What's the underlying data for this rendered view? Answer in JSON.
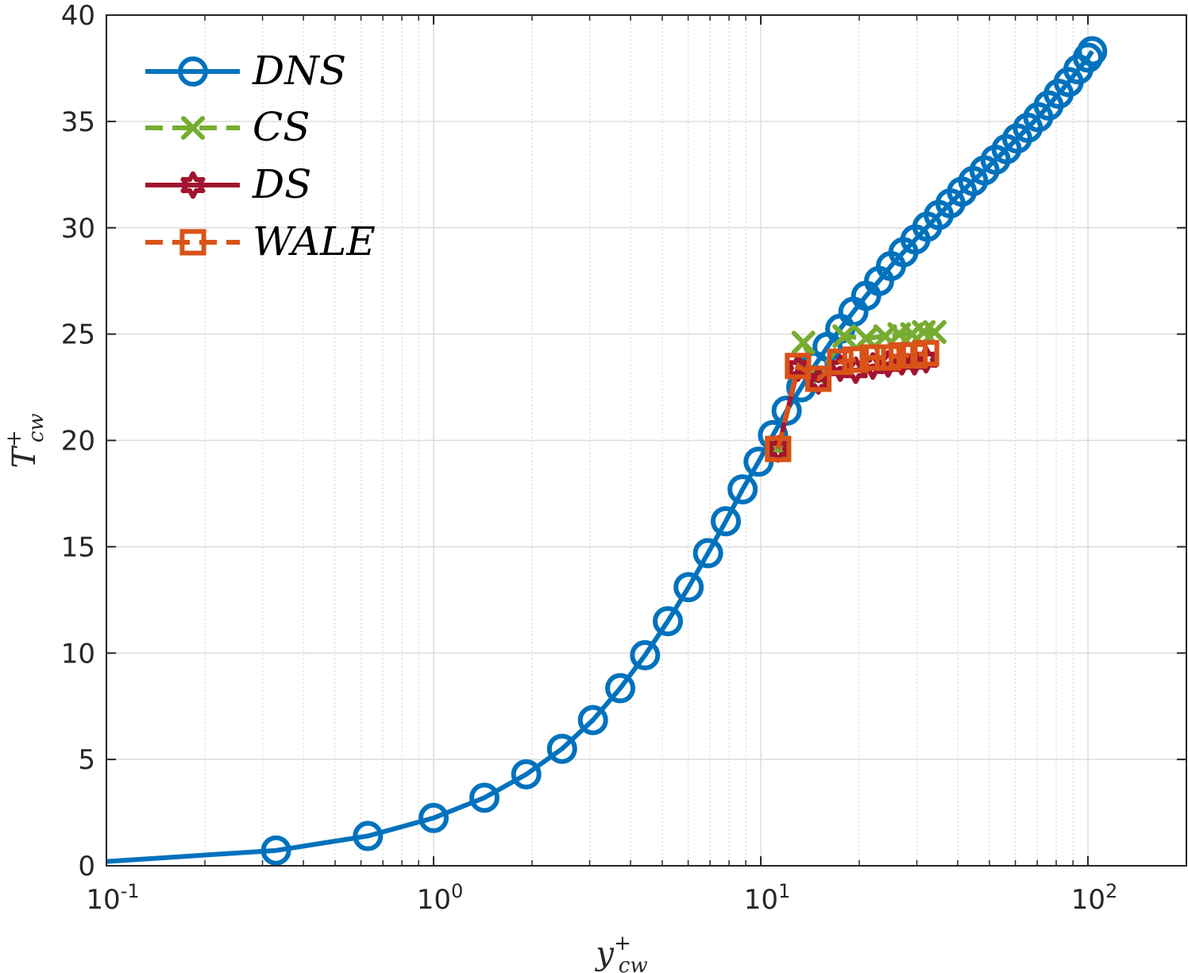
{
  "chart_data": {
    "type": "line",
    "title": "",
    "xscale": "log",
    "xlabel": "y+ cw",
    "xlabel_main": "y",
    "xlabel_sup": "+",
    "xlabel_sub": "cw",
    "ylabel": "T+ cw",
    "ylabel_main": "T",
    "ylabel_sup": "+",
    "ylabel_sub": "cw",
    "xlim": [
      0.1,
      200
    ],
    "ylim": [
      0,
      40
    ],
    "grid": true,
    "legend_position": "top-left",
    "x_ticks": [
      {
        "value": 0.1,
        "base": "10",
        "exp": "-1"
      },
      {
        "value": 1,
        "base": "10",
        "exp": "0"
      },
      {
        "value": 10,
        "base": "10",
        "exp": "1"
      },
      {
        "value": 100,
        "base": "10",
        "exp": "2"
      }
    ],
    "y_ticks": [
      0,
      5,
      10,
      15,
      20,
      25,
      30,
      35,
      40
    ],
    "series": [
      {
        "name": "DNS",
        "color": "#0072BD",
        "line_style": "solid",
        "marker": "circle",
        "x": [
          0.1,
          0.33,
          0.63,
          1.0,
          1.43,
          1.92,
          2.47,
          3.07,
          3.72,
          4.43,
          5.2,
          6.02,
          6.9,
          7.82,
          8.8,
          9.85,
          10.9,
          12.0,
          13.3,
          14.6,
          16.0,
          17.5,
          19.2,
          21.0,
          23.0,
          25.0,
          27.3,
          29.7,
          32.3,
          35.0,
          38.0,
          41.2,
          44.6,
          48.3,
          52.2,
          56.4,
          60.8,
          65.5,
          70.5,
          75.8,
          81.4,
          87.3,
          93.5,
          100.0,
          103.0
        ],
        "y": [
          0.2,
          0.72,
          1.4,
          2.25,
          3.2,
          4.3,
          5.5,
          6.85,
          8.35,
          9.9,
          11.5,
          13.1,
          14.7,
          16.2,
          17.7,
          19.0,
          20.25,
          21.4,
          22.5,
          23.5,
          24.4,
          25.25,
          26.05,
          26.8,
          27.5,
          28.2,
          28.85,
          29.45,
          30.05,
          30.6,
          31.15,
          31.7,
          32.2,
          32.7,
          33.2,
          33.7,
          34.2,
          34.7,
          35.2,
          35.75,
          36.3,
          36.85,
          37.45,
          38.0,
          38.3
        ]
      },
      {
        "name": "CS",
        "color": "#77AC30",
        "line_style": "dashed",
        "marker": "x",
        "x": [
          11.3,
          13.5,
          15.0,
          18.0,
          21.0,
          24.0,
          26.5,
          29.0,
          31.5,
          34.0
        ],
        "y": [
          19.6,
          24.6,
          23.0,
          24.9,
          24.8,
          24.9,
          25.0,
          25.0,
          25.1,
          25.1
        ]
      },
      {
        "name": "DS",
        "color": "#A2142F",
        "line_style": "solid",
        "marker": "hexagram",
        "x": [
          11.3,
          13.0,
          15.0,
          17.5,
          19.5,
          22.0,
          24.5,
          27.0,
          29.5,
          32.0
        ],
        "y": [
          19.6,
          23.4,
          22.8,
          23.4,
          23.3,
          23.5,
          23.6,
          23.7,
          23.7,
          23.8
        ]
      },
      {
        "name": "WALE",
        "color": "#D95319",
        "line_style": "dashed",
        "marker": "square",
        "x": [
          11.3,
          13.0,
          15.0,
          17.5,
          19.5,
          22.0,
          24.5,
          27.0,
          29.5,
          32.0
        ],
        "y": [
          19.6,
          23.5,
          22.9,
          23.7,
          23.8,
          23.9,
          23.9,
          24.0,
          24.0,
          24.1
        ]
      }
    ]
  }
}
